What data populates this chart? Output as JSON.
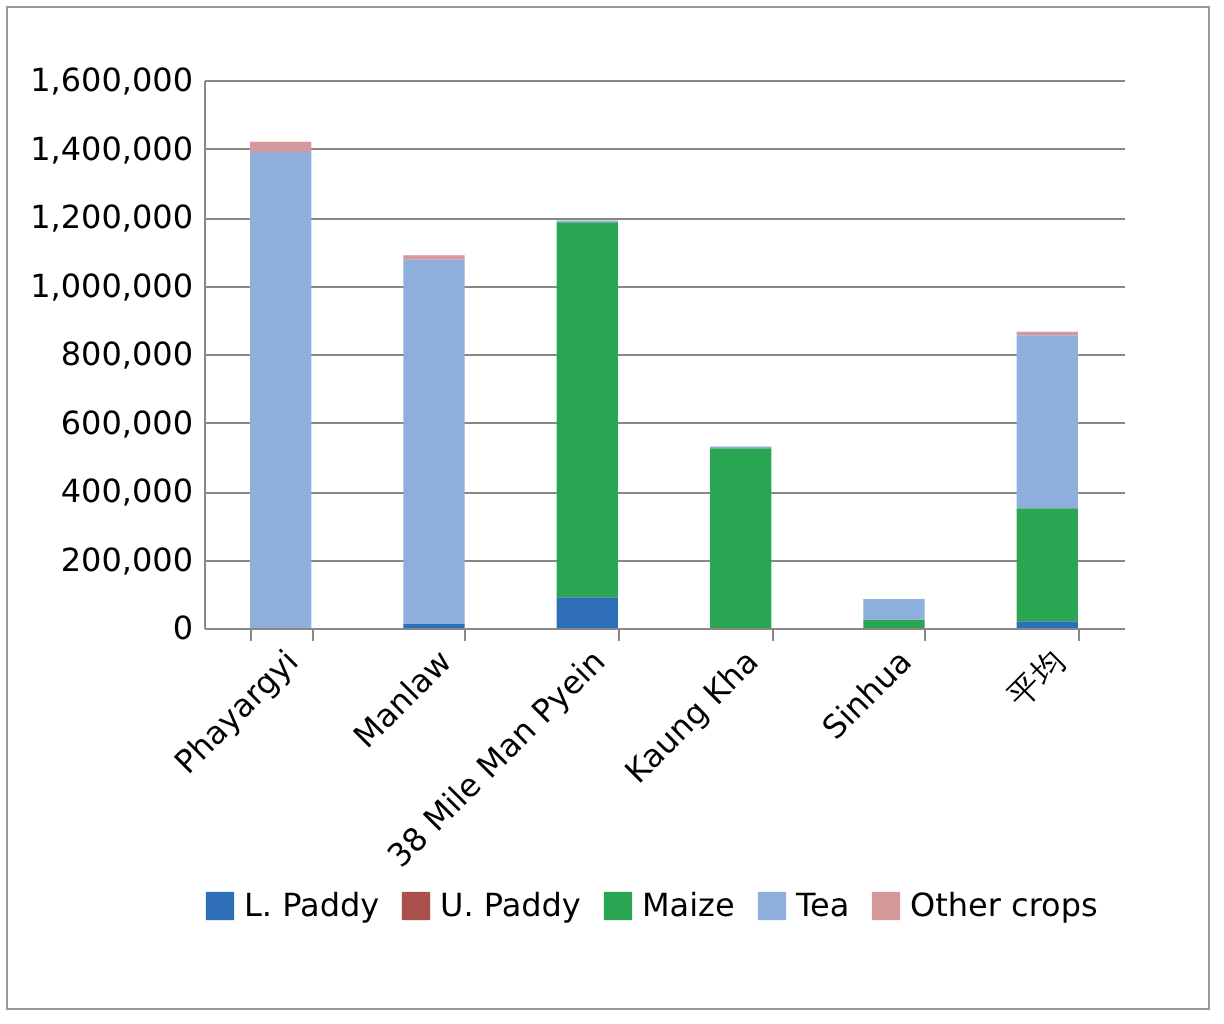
{
  "chart_data": {
    "type": "bar",
    "stacked": true,
    "categories": [
      "Phayargyi",
      "Manlaw",
      "38 Mile Man Pyein",
      "Kaung Kha",
      "Sinhua",
      "平均"
    ],
    "series": [
      {
        "name": "L. Paddy",
        "color": "#2f6fb8",
        "values": [
          0,
          12000,
          90000,
          0,
          0,
          20000
        ]
      },
      {
        "name": "U. Paddy",
        "color": "#a9504c",
        "values": [
          0,
          0,
          0,
          0,
          0,
          0
        ]
      },
      {
        "name": "Maize",
        "color": "#2aa552",
        "values": [
          0,
          0,
          1095000,
          525000,
          25000,
          330000
        ]
      },
      {
        "name": "Tea",
        "color": "#8eaedb",
        "values": [
          1390000,
          1063000,
          5000,
          5000,
          60000,
          505000
        ]
      },
      {
        "name": "Other crops",
        "color": "#d4999a",
        "values": [
          30000,
          13000,
          0,
          0,
          0,
          10000
        ]
      }
    ],
    "ylim": [
      0,
      1600000
    ],
    "yticks": [
      0,
      {
        "value": 200000,
        "label": "200,000"
      },
      {
        "value": 400000,
        "label": "400,000"
      },
      {
        "value": 600000,
        "label": "600,000"
      },
      {
        "value": 800000,
        "label": "800,000"
      },
      {
        "value": 1000000,
        "label": "1,000,000"
      },
      {
        "value": 1200000,
        "label": "1,200,000"
      },
      {
        "value": 1400000,
        "label": "1,400,000"
      },
      {
        "value": 1600000,
        "label": "1,600,000"
      }
    ],
    "grid": "y",
    "legend": "bottom"
  }
}
